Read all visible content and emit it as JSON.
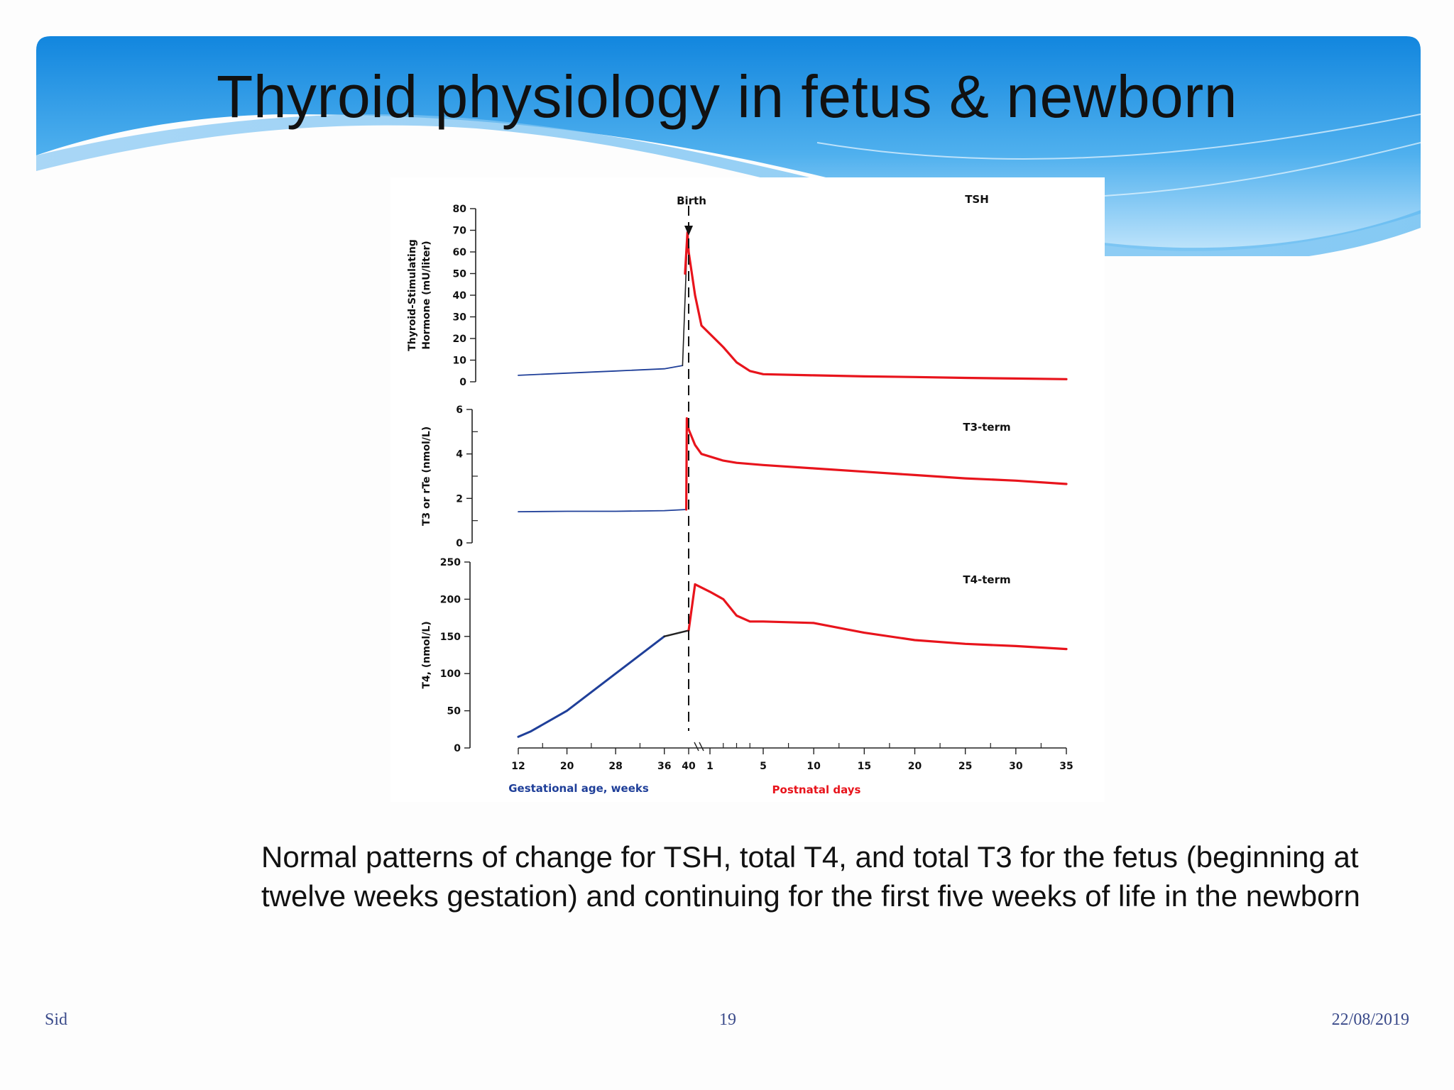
{
  "slide": {
    "title": "Thyroid physiology in fetus & newborn",
    "caption": "Normal patterns of change for TSH, total T4, and total T3 for the fetus (beginning at twelve weeks gestation) and continuing for the first five weeks of life in the newborn",
    "footer_left": "Sid",
    "footer_center": "19",
    "footer_right": "22/08/2019"
  },
  "colors": {
    "fetal": "#1f3f99",
    "postnatal": "#e8141c",
    "banner_top": "#1b8fe0",
    "banner_light": "#9fd3f7"
  },
  "chart_data": {
    "type": "line",
    "birth_label": "Birth",
    "x_labels": [
      "12",
      "20",
      "28",
      "36",
      "40",
      "1",
      "5",
      "10",
      "15",
      "20",
      "25",
      "30",
      "35"
    ],
    "x_title_fetal": "Gestational age, weeks",
    "x_title_postnatal": "Postnatal days",
    "panels": [
      {
        "name": "TSH",
        "panel_label": "TSH",
        "ylabel_line1": "Thyroid-Stimulating",
        "ylabel_line2": "Hormone (mU/liter)",
        "ylim": [
          0,
          80
        ],
        "yticks": [
          "0",
          "10",
          "20",
          "30",
          "40",
          "50",
          "60",
          "70",
          "80"
        ],
        "fetal": {
          "x": [
            12,
            20,
            28,
            36,
            39
          ],
          "y": [
            3,
            4,
            5,
            6,
            7.5
          ]
        },
        "surge": {
          "x": [
            39,
            39.7
          ],
          "y": [
            7.5,
            60
          ]
        },
        "postnatal": {
          "x": [
            39.4,
            39.8,
            40,
            40.5,
            41,
            2,
            3,
            4,
            5,
            10,
            15,
            20,
            25,
            30,
            35
          ],
          "y": [
            50,
            69,
            60,
            40,
            26,
            16,
            9,
            5,
            3.5,
            3,
            2.5,
            2.2,
            1.8,
            1.5,
            1.2
          ]
        }
      },
      {
        "name": "T3-term",
        "panel_label": "T3-term",
        "ylabel": "T3 or rTe (nmol/L)",
        "ylim": [
          0,
          6
        ],
        "yticks": [
          "0",
          "2",
          "4",
          "6"
        ],
        "fetal": {
          "x": [
            12,
            20,
            28,
            36,
            39.6
          ],
          "y": [
            1.4,
            1.42,
            1.42,
            1.45,
            1.5
          ]
        },
        "postnatal": {
          "x": [
            39.6,
            39.7,
            40,
            40.5,
            41,
            2,
            3,
            5,
            10,
            15,
            20,
            25,
            30,
            35
          ],
          "y": [
            1.5,
            5.6,
            5.1,
            4.4,
            4.0,
            3.7,
            3.6,
            3.5,
            3.35,
            3.2,
            3.05,
            2.9,
            2.8,
            2.65
          ]
        }
      },
      {
        "name": "T4-term",
        "panel_label": "T4-term",
        "ylabel": "T4, (nmol/L)",
        "ylim": [
          0,
          250
        ],
        "yticks": [
          "0",
          "50",
          "100",
          "150",
          "200",
          "250"
        ],
        "fetal": {
          "x": [
            12,
            14,
            20,
            28,
            36
          ],
          "y": [
            15,
            22,
            50,
            100,
            150
          ]
        },
        "late_fetal": {
          "x": [
            36,
            40
          ],
          "y": [
            150,
            158
          ]
        },
        "postnatal": {
          "x": [
            40,
            40.5,
            1,
            2,
            3,
            4,
            5,
            10,
            15,
            20,
            25,
            30,
            35
          ],
          "y": [
            158,
            220,
            210,
            200,
            178,
            170,
            170,
            168,
            155,
            145,
            140,
            137,
            133
          ]
        }
      }
    ]
  }
}
